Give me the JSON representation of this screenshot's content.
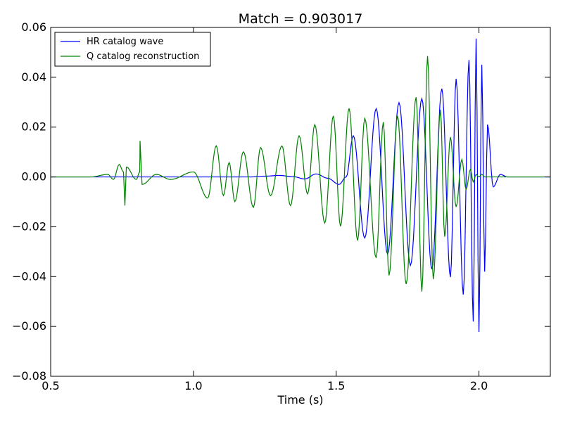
{
  "chart_data": {
    "type": "line",
    "title": "Match = 0.903017",
    "xlabel": "Time (s)",
    "ylabel": "",
    "xlim": [
      0.5,
      2.25
    ],
    "ylim": [
      -0.08,
      0.06
    ],
    "xticks": [
      "0.5",
      "1.0",
      "1.5",
      "2.0"
    ],
    "xtick_values": [
      0.5,
      1.0,
      1.5,
      2.0
    ],
    "yticks": [
      "0.06",
      "0.04",
      "0.02",
      "0.00",
      "−0.02",
      "−0.04",
      "−0.06",
      "−0.08"
    ],
    "ytick_values": [
      0.06,
      0.04,
      0.02,
      0.0,
      -0.02,
      -0.04,
      -0.06,
      -0.08
    ],
    "grid": false,
    "legend_position": "top-left",
    "series": [
      {
        "name": "HR catalog wave",
        "color": "#0000ff",
        "x": [
          0.5,
          1.0,
          1.2,
          1.25,
          1.3,
          1.35,
          1.39,
          1.43,
          1.47,
          1.51,
          1.535,
          1.56,
          1.6,
          1.64,
          1.68,
          1.72,
          1.76,
          1.8,
          1.835,
          1.87,
          1.9,
          1.92,
          1.945,
          1.965,
          1.98,
          1.99,
          2.0,
          2.01,
          2.02,
          2.03,
          2.05,
          2.075,
          2.1,
          2.25
        ],
        "y": [
          0.0,
          0.0,
          0.0,
          0.0003,
          0.0006,
          0.0001,
          -0.0008,
          0.0012,
          -0.0005,
          -0.003,
          0.0,
          0.0165,
          -0.0245,
          0.0274,
          -0.031,
          0.0298,
          -0.0355,
          0.0314,
          -0.037,
          0.0354,
          -0.0402,
          0.0394,
          -0.0472,
          0.0469,
          -0.058,
          0.0555,
          -0.0622,
          0.045,
          -0.038,
          0.021,
          -0.004,
          0.001,
          0.0,
          0.0
        ]
      },
      {
        "name": "Q catalog reconstruction",
        "color": "#008000",
        "x": [
          0.5,
          0.62,
          0.64,
          0.7,
          0.72,
          0.74,
          0.755,
          0.76,
          0.765,
          0.8,
          0.812,
          0.813,
          0.82,
          0.87,
          0.92,
          1.0,
          1.05,
          1.08,
          1.105,
          1.125,
          1.145,
          1.175,
          1.21,
          1.235,
          1.27,
          1.31,
          1.34,
          1.37,
          1.4,
          1.425,
          1.46,
          1.49,
          1.515,
          1.545,
          1.575,
          1.6,
          1.64,
          1.665,
          1.685,
          1.715,
          1.745,
          1.78,
          1.8,
          1.82,
          1.84,
          1.865,
          1.88,
          1.9,
          1.92,
          1.94,
          1.955,
          1.97,
          1.98,
          1.99,
          2.0,
          2.01,
          2.02,
          2.035,
          2.045,
          2.055,
          2.07,
          2.1,
          2.25
        ],
        "y": [
          0.0,
          0.0,
          0.0,
          0.001,
          -0.001,
          0.005,
          0.002,
          -0.0115,
          0.004,
          -0.001,
          0.002,
          0.0145,
          -0.003,
          0.001,
          -0.001,
          0.002,
          -0.0085,
          0.0125,
          -0.0075,
          0.0058,
          -0.0099,
          0.0101,
          -0.0122,
          0.0118,
          -0.0075,
          0.0124,
          -0.0115,
          0.0165,
          -0.0068,
          0.021,
          -0.0185,
          0.0245,
          -0.0198,
          0.0275,
          -0.0255,
          0.0235,
          -0.0325,
          0.022,
          -0.0395,
          0.0245,
          -0.043,
          0.032,
          -0.046,
          0.0485,
          -0.041,
          0.027,
          -0.024,
          0.016,
          -0.012,
          0.007,
          -0.005,
          0.003,
          -0.002,
          0.001,
          0.0,
          0.001,
          0.0,
          0.0,
          0.0,
          0.0,
          0.0,
          0.0,
          0.0
        ]
      }
    ]
  }
}
